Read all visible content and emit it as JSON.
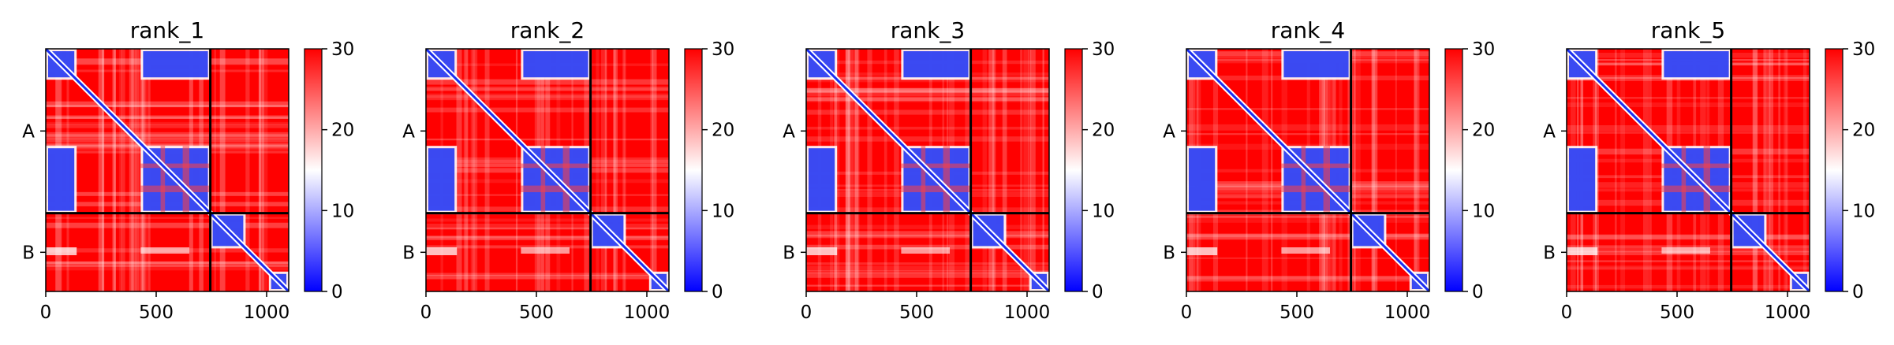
{
  "chart_data": [
    {
      "type": "heatmap",
      "title": "rank_1",
      "x_ticks": [
        "0",
        "500",
        "1000"
      ],
      "x_tick_values": [
        0,
        500,
        1000
      ],
      "xlim": [
        0,
        1100
      ],
      "y_ticks": [
        "A",
        "B"
      ],
      "chains": [
        {
          "name": "A",
          "start": 0,
          "end": 745
        },
        {
          "name": "B",
          "start": 745,
          "end": 1100
        }
      ],
      "colorbar": {
        "ticks": [
          "0",
          "10",
          "20",
          "30"
        ],
        "range": [
          0,
          30
        ],
        "colors": [
          "#0000ff",
          "#ffffff",
          "#ff0000"
        ]
      }
    },
    {
      "type": "heatmap",
      "title": "rank_2",
      "x_ticks": [
        "0",
        "500",
        "1000"
      ],
      "x_tick_values": [
        0,
        500,
        1000
      ],
      "xlim": [
        0,
        1100
      ],
      "y_ticks": [
        "A",
        "B"
      ],
      "chains": [
        {
          "name": "A",
          "start": 0,
          "end": 745
        },
        {
          "name": "B",
          "start": 745,
          "end": 1100
        }
      ],
      "colorbar": {
        "ticks": [
          "0",
          "10",
          "20",
          "30"
        ],
        "range": [
          0,
          30
        ],
        "colors": [
          "#0000ff",
          "#ffffff",
          "#ff0000"
        ]
      }
    },
    {
      "type": "heatmap",
      "title": "rank_3",
      "x_ticks": [
        "0",
        "500",
        "1000"
      ],
      "x_tick_values": [
        0,
        500,
        1000
      ],
      "xlim": [
        0,
        1100
      ],
      "y_ticks": [
        "A",
        "B"
      ],
      "chains": [
        {
          "name": "A",
          "start": 0,
          "end": 745
        },
        {
          "name": "B",
          "start": 745,
          "end": 1100
        }
      ],
      "colorbar": {
        "ticks": [
          "0",
          "10",
          "20",
          "30"
        ],
        "range": [
          0,
          30
        ],
        "colors": [
          "#0000ff",
          "#ffffff",
          "#ff0000"
        ]
      }
    },
    {
      "type": "heatmap",
      "title": "rank_4",
      "x_ticks": [
        "0",
        "500",
        "1000"
      ],
      "x_tick_values": [
        0,
        500,
        1000
      ],
      "xlim": [
        0,
        1100
      ],
      "y_ticks": [
        "A",
        "B"
      ],
      "chains": [
        {
          "name": "A",
          "start": 0,
          "end": 745
        },
        {
          "name": "B",
          "start": 745,
          "end": 1100
        }
      ],
      "colorbar": {
        "ticks": [
          "0",
          "10",
          "20",
          "30"
        ],
        "range": [
          0,
          30
        ],
        "colors": [
          "#0000ff",
          "#ffffff",
          "#ff0000"
        ]
      }
    },
    {
      "type": "heatmap",
      "title": "rank_5",
      "x_ticks": [
        "0",
        "500",
        "1000"
      ],
      "x_tick_values": [
        0,
        500,
        1000
      ],
      "xlim": [
        0,
        1100
      ],
      "y_ticks": [
        "A",
        "B"
      ],
      "chains": [
        {
          "name": "A",
          "start": 0,
          "end": 745
        },
        {
          "name": "B",
          "start": 745,
          "end": 1100
        }
      ],
      "colorbar": {
        "ticks": [
          "0",
          "10",
          "20",
          "30"
        ],
        "range": [
          0,
          30
        ],
        "colors": [
          "#0000ff",
          "#ffffff",
          "#ff0000"
        ]
      }
    }
  ]
}
